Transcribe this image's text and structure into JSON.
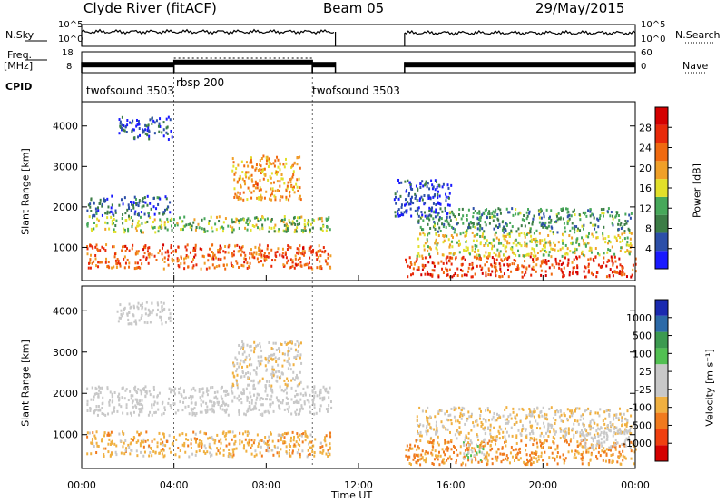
{
  "header": {
    "station": "Clyde River (fitACF)",
    "beam": "Beam 05",
    "date": "29/May/2015"
  },
  "side_labels": {
    "nsky": "N.Sky",
    "freq": "Freq.",
    "freq_unit": "[MHz]",
    "cpid": "CPID",
    "nsearch": "N.Search",
    "nave": "Nave"
  },
  "noise_axis": {
    "left_top": "10^5",
    "left_bottom": "10^0",
    "right_top": "10^5",
    "right_bottom": "10^0"
  },
  "freq_axis": {
    "left_ticks": [
      "18",
      "8"
    ],
    "right_ticks": [
      "60",
      "0"
    ]
  },
  "cpid_segments": [
    {
      "label": "twofsound 3503",
      "start_hour": 0,
      "end_hour": 4
    },
    {
      "label": "rbsp 200",
      "start_hour": 4,
      "end_hour": 10
    },
    {
      "label": "twofsound 3503",
      "start_hour": 10,
      "end_hour": 24
    }
  ],
  "x_axis": {
    "label": "Time UT",
    "ticks": [
      "00:00",
      "04:00",
      "08:00",
      "12:00",
      "16:00",
      "20:00",
      "00:00"
    ],
    "range_hours": [
      0,
      24
    ]
  },
  "colors": {
    "power_scale": [
      "#1a1aff",
      "#2c4fa8",
      "#3c7d46",
      "#47a85a",
      "#e2e02a",
      "#f0a028",
      "#f06a10",
      "#e82a0a",
      "#d40000"
    ],
    "velocity_scale": [
      "#d40000",
      "#f04010",
      "#f07a1e",
      "#f0b040",
      "#c8c8c8",
      "#c8c8c8",
      "#52c052",
      "#3c9a50",
      "#2c6aa8",
      "#1a2ab0"
    ]
  },
  "chart_data": [
    {
      "type": "line",
      "title": "N.Sky / N.Search",
      "y_scale": "log",
      "ylim": [
        1,
        100000
      ],
      "series": [
        {
          "x_hours": [
            0,
            11
          ],
          "level_fraction": 0.5
        },
        {
          "x_hours": [
            14,
            24
          ],
          "level_fraction": 0.45
        }
      ]
    },
    {
      "type": "line",
      "title": "Freq. / Nave",
      "ylim_freq": [
        8,
        18
      ],
      "ylim_nave": [
        0,
        60
      ],
      "series": [
        {
          "x_hours": [
            0,
            4
          ],
          "freq_fraction": 0.45
        },
        {
          "x_hours": [
            4,
            10
          ],
          "freq_fraction": 0.3
        },
        {
          "x_hours": [
            10,
            11
          ],
          "freq_fraction": 0.45
        },
        {
          "x_hours": [
            14,
            24
          ],
          "freq_fraction": 0.45
        }
      ]
    },
    {
      "type": "heatmap",
      "ylabel": "Slant Range [km]",
      "xlabel": "Time UT",
      "xlim": [
        0,
        24
      ],
      "ylim": [
        180,
        4600
      ],
      "y_ticks": [
        1000,
        2000,
        3000,
        4000
      ],
      "colorbar": {
        "label": "Power [dB]",
        "ticks": [
          "28",
          "24",
          "20",
          "16",
          "12",
          "8",
          "4"
        ],
        "range": [
          0,
          32
        ]
      },
      "regions": [
        {
          "t0": 0.2,
          "t1": 10.8,
          "r0": 500,
          "r1": 1100,
          "value": 24
        },
        {
          "t0": 0.2,
          "t1": 10.8,
          "r0": 1400,
          "r1": 1800,
          "value": 14
        },
        {
          "t0": 0.2,
          "t1": 3.8,
          "r0": 1800,
          "r1": 2300,
          "value": 6
        },
        {
          "t0": 1.5,
          "t1": 3.9,
          "r0": 3700,
          "r1": 4250,
          "value": 5
        },
        {
          "t0": 6.5,
          "t1": 9.5,
          "r0": 2200,
          "r1": 3300,
          "value": 20
        },
        {
          "t0": 14.0,
          "t1": 24.0,
          "r0": 300,
          "r1": 800,
          "value": 26
        },
        {
          "t0": 14.5,
          "t1": 23.8,
          "r0": 800,
          "r1": 1400,
          "value": 16
        },
        {
          "t0": 14.5,
          "t1": 23.8,
          "r0": 1400,
          "r1": 2000,
          "value": 10
        },
        {
          "t0": 13.5,
          "t1": 16.0,
          "r0": 1800,
          "r1": 2700,
          "value": 4
        }
      ]
    },
    {
      "type": "heatmap",
      "ylabel": "Slant Range [km]",
      "xlabel": "Time UT",
      "xlim": [
        0,
        24
      ],
      "ylim": [
        180,
        4600
      ],
      "y_ticks": [
        1000,
        2000,
        3000,
        4000
      ],
      "colorbar": {
        "label": "Velocity [m s⁻¹]",
        "ticks": [
          "1000",
          "500",
          "100",
          "25",
          "-25",
          "-100",
          "-500",
          "-1000"
        ],
        "range": [
          -1000,
          1000
        ]
      },
      "regions": [
        {
          "t0": 0.2,
          "t1": 10.8,
          "r0": 500,
          "r1": 1100,
          "value": -300
        },
        {
          "t0": 0.2,
          "t1": 10.8,
          "r0": 1500,
          "r1": 2200,
          "value": 0
        },
        {
          "t0": 6.5,
          "t1": 9.5,
          "r0": 2200,
          "r1": 3300,
          "value": -150
        },
        {
          "t0": 1.5,
          "t1": 3.9,
          "r0": 3700,
          "r1": 4250,
          "value": 10
        },
        {
          "t0": 14.0,
          "t1": 24.0,
          "r0": 300,
          "r1": 900,
          "value": -400
        },
        {
          "t0": 14.5,
          "t1": 23.8,
          "r0": 900,
          "r1": 1700,
          "value": -200
        },
        {
          "t0": 16.5,
          "t1": 17.5,
          "r0": 400,
          "r1": 900,
          "value": 150
        },
        {
          "t0": 21.5,
          "t1": 23.8,
          "r0": 700,
          "r1": 1200,
          "value": 0
        }
      ]
    }
  ]
}
